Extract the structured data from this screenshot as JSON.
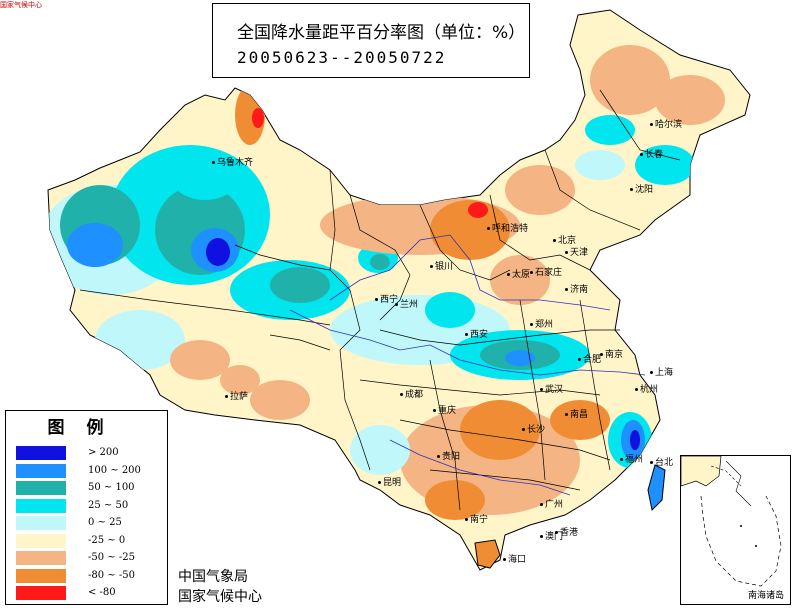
{
  "corner_mark": "国家气候中心",
  "title": {
    "line1": "全国降水量距平百分率图（单位：%）",
    "line2": "20050623--20050722"
  },
  "legend": {
    "title": "图例",
    "items": [
      {
        "label": "> 200",
        "color": "#1010e0"
      },
      {
        "label": "100 ~ 200",
        "color": "#1e90ff"
      },
      {
        "label": "50 ~ 100",
        "color": "#20b2aa"
      },
      {
        "label": "25 ~ 50",
        "color": "#00e5ee"
      },
      {
        "label": "0 ~ 25",
        "color": "#bff7fa"
      },
      {
        "label": "-25 ~ 0",
        "color": "#fff5c8"
      },
      {
        "label": "-50 ~ -25",
        "color": "#f4b483"
      },
      {
        "label": "-80 ~ -50",
        "color": "#f08d34"
      },
      {
        "label": "< -80",
        "color": "#ff1a1a"
      }
    ]
  },
  "agency": {
    "line1": "中国气象局",
    "line2": "国家气候中心"
  },
  "inset": {
    "label": "南海诸岛"
  },
  "cities": [
    {
      "name": "乌鲁木齐"
    },
    {
      "name": "哈尔滨"
    },
    {
      "name": "长春"
    },
    {
      "name": "沈阳"
    },
    {
      "name": "呼和浩特"
    },
    {
      "name": "北京"
    },
    {
      "name": "天津"
    },
    {
      "name": "石家庄"
    },
    {
      "name": "太原"
    },
    {
      "name": "银川"
    },
    {
      "name": "兰州"
    },
    {
      "name": "西宁"
    },
    {
      "name": "西安"
    },
    {
      "name": "郑州"
    },
    {
      "name": "济南"
    },
    {
      "name": "合肥"
    },
    {
      "name": "南京"
    },
    {
      "name": "上海"
    },
    {
      "name": "杭州"
    },
    {
      "name": "武汉"
    },
    {
      "name": "成都"
    },
    {
      "name": "重庆"
    },
    {
      "name": "拉萨"
    },
    {
      "name": "长沙"
    },
    {
      "name": "南昌"
    },
    {
      "name": "福州"
    },
    {
      "name": "台北"
    },
    {
      "name": "贵阳"
    },
    {
      "name": "昆明"
    },
    {
      "name": "南宁"
    },
    {
      "name": "广州"
    },
    {
      "name": "香港"
    },
    {
      "name": "澳门"
    },
    {
      "name": "海口"
    }
  ]
}
